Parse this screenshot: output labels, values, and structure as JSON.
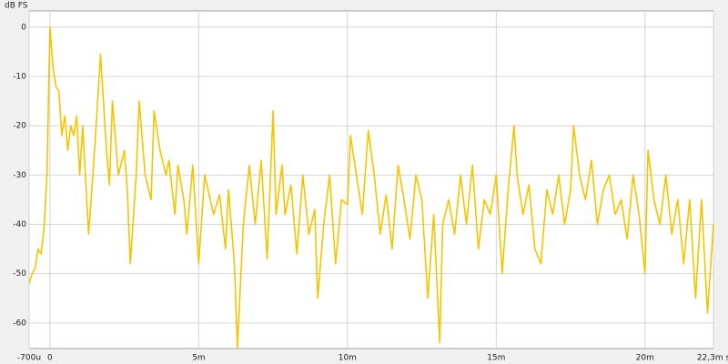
{
  "chart_data": {
    "type": "line",
    "y_label": "dB FS",
    "x": [
      -0.7,
      -0.6,
      -0.5,
      -0.4,
      -0.3,
      -0.2,
      -0.1,
      0,
      0.1,
      0.2,
      0.3,
      0.4,
      0.5,
      0.6,
      0.7,
      0.8,
      0.9,
      1.0,
      1.1,
      1.3,
      1.5,
      1.7,
      1.9,
      2.0,
      2.1,
      2.3,
      2.5,
      2.6,
      2.7,
      2.9,
      3.0,
      3.2,
      3.4,
      3.5,
      3.7,
      3.9,
      4.0,
      4.2,
      4.3,
      4.5,
      4.6,
      4.8,
      5.0,
      5.2,
      5.5,
      5.7,
      5.9,
      6.0,
      6.2,
      6.3,
      6.5,
      6.7,
      6.9,
      7.1,
      7.3,
      7.5,
      7.6,
      7.8,
      7.9,
      8.1,
      8.3,
      8.5,
      8.7,
      8.9,
      9.0,
      9.2,
      9.4,
      9.6,
      9.8,
      10.0,
      10.1,
      10.3,
      10.5,
      10.7,
      10.9,
      11.1,
      11.3,
      11.5,
      11.7,
      11.9,
      12.1,
      12.3,
      12.5,
      12.7,
      12.9,
      13.1,
      13.2,
      13.4,
      13.6,
      13.8,
      14.0,
      14.2,
      14.4,
      14.6,
      14.8,
      15.0,
      15.2,
      15.4,
      15.6,
      15.7,
      15.9,
      16.1,
      16.3,
      16.5,
      16.7,
      16.9,
      17.1,
      17.3,
      17.5,
      17.6,
      17.8,
      18.0,
      18.2,
      18.4,
      18.6,
      18.8,
      19.0,
      19.2,
      19.4,
      19.6,
      19.8,
      20.0,
      20.1,
      20.3,
      20.5,
      20.7,
      20.9,
      21.1,
      21.3,
      21.5,
      21.7,
      21.9,
      22.1,
      22.3
    ],
    "series": [
      {
        "color": "#f5c400",
        "values": [
          -52,
          -50,
          -49,
          -45,
          -46,
          -41,
          -30,
          0,
          -8,
          -12,
          -13,
          -22,
          -18,
          -25,
          -20,
          -22,
          -18,
          -30,
          -20,
          -42,
          -25,
          -5.5,
          -25,
          -32,
          -15,
          -30,
          -25,
          -33,
          -48,
          -30,
          -15,
          -30,
          -35,
          -17,
          -25,
          -30,
          -27,
          -38,
          -28,
          -35,
          -42,
          -28,
          -48,
          -30,
          -38,
          -34,
          -45,
          -33,
          -48,
          -65,
          -40,
          -28,
          -40,
          -27,
          -47,
          -17,
          -38,
          -28,
          -38,
          -32,
          -46,
          -30,
          -42,
          -37,
          -55,
          -40,
          -30,
          -48,
          -35,
          -36,
          -22,
          -30,
          -38,
          -21,
          -30,
          -42,
          -34,
          -45,
          -28,
          -35,
          -43,
          -30,
          -35,
          -55,
          -38,
          -64,
          -40,
          -35,
          -42,
          -30,
          -40,
          -28,
          -45,
          -35,
          -38,
          -30,
          -50,
          -33,
          -20,
          -30,
          -38,
          -32,
          -45,
          -48,
          -33,
          -38,
          -30,
          -40,
          -33,
          -20,
          -30,
          -35,
          -27,
          -40,
          -33,
          -30,
          -38,
          -35,
          -43,
          -30,
          -38,
          -50,
          -25,
          -35,
          -40,
          -30,
          -42,
          -35,
          -48,
          -35,
          -55,
          -35,
          -58,
          -40
        ]
      }
    ],
    "xlim": [
      -0.7,
      22.3
    ],
    "ylim": [
      -65.2,
      3.3
    ],
    "xticks": [
      {
        "value": -0.7,
        "label": "-700u"
      },
      0,
      {
        "value": 5,
        "label": "5m"
      },
      {
        "value": 10,
        "label": "10m"
      },
      {
        "value": 15,
        "label": "15m"
      },
      {
        "value": 20,
        "label": "20m"
      },
      {
        "value": 22.3,
        "label": "22,3m s"
      }
    ],
    "yticks": [
      0,
      -10,
      -20,
      -30,
      -40,
      -50,
      -60
    ],
    "grid": true
  }
}
